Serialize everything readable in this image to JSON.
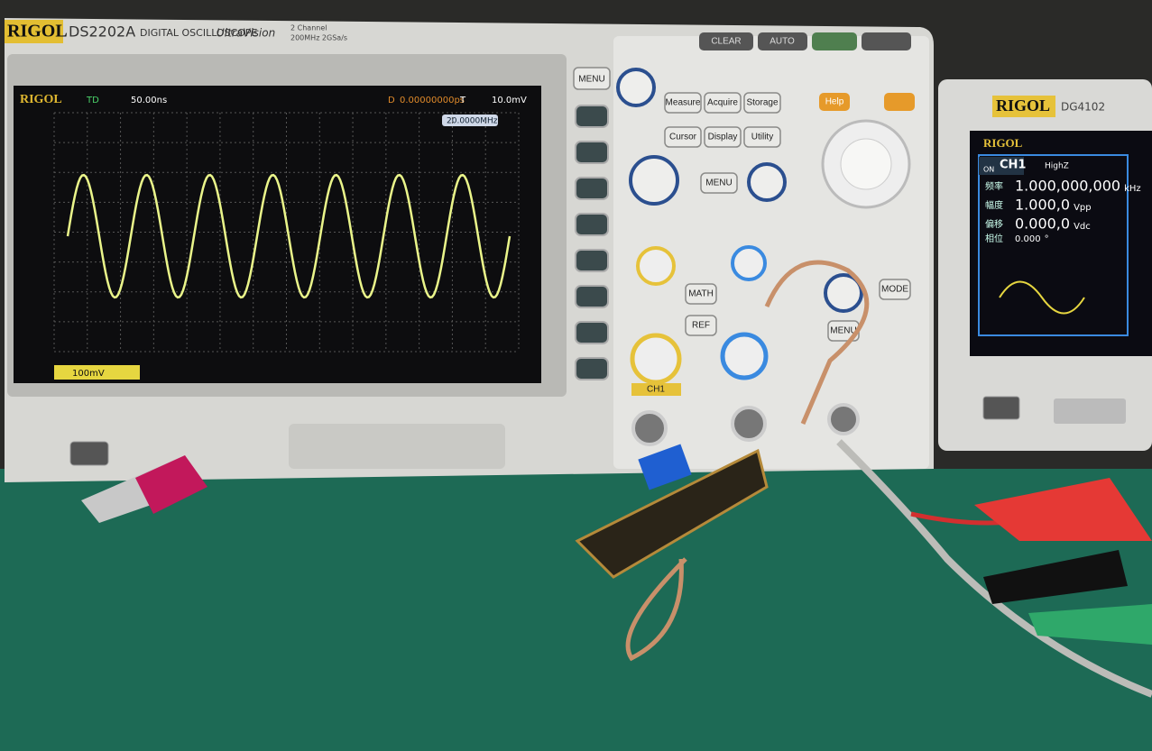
{
  "scope": {
    "brand": "RIGOL",
    "model": "DS2202A",
    "subtitle": "DIGITAL OSCILLOSCOPE",
    "series_name": "UltraVision",
    "channels": "2 Channel",
    "spec": "200MHz 2GSa/s",
    "top_buttons": [
      "CLEAR",
      "AUTO"
    ],
    "screen": {
      "brand": "RIGOL",
      "mode": "TD",
      "timebase": "50.00ns",
      "delay_label": "D",
      "delay": "0.00000000ps",
      "trigger_label": "T",
      "trigger_level": "10.0mV",
      "frequency": "20.0000MHz",
      "ch1_scale": "100mV"
    },
    "side_menu": "MENU",
    "buttons": [
      "Measure",
      "Acquire",
      "Storage",
      "Cursor",
      "Display",
      "Utility"
    ],
    "help": "Help",
    "horizontal_menu": "MENU",
    "vertical_buttons": [
      "MATH",
      "REF"
    ],
    "channel": "CH1",
    "mode": "MODE",
    "trigger_menu": "MENU"
  },
  "generator": {
    "brand": "RIGOL",
    "model": "DG4102",
    "screen": {
      "brand": "RIGOL",
      "state": "ON",
      "channel": "CH1",
      "impedance": "HighZ",
      "rows": [
        {
          "label": "频率",
          "value": "1.000,000,000",
          "unit": "kHz"
        },
        {
          "label": "幅度",
          "value": "1.000,0",
          "unit": "Vpp"
        },
        {
          "label": "偏移",
          "value": "0.000,0",
          "unit": "Vdc"
        },
        {
          "label": "相位",
          "value": "0.000",
          "unit": "°"
        }
      ]
    }
  }
}
